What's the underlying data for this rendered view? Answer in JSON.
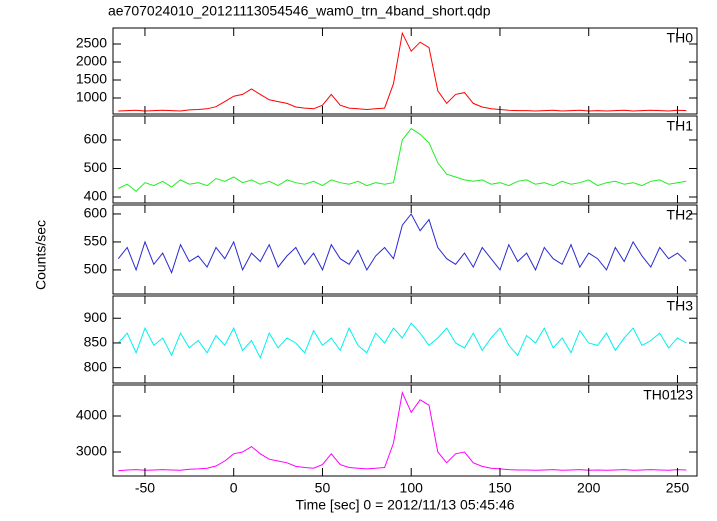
{
  "chart_data": [
    {
      "type": "line",
      "title": "ae707024010_20121113054546_wam0_trn_4band_short.qdp",
      "ylabel": "Counts/sec",
      "x": [
        -65,
        -60,
        -55,
        -50,
        -45,
        -40,
        -35,
        -30,
        -25,
        -20,
        -15,
        -10,
        -5,
        0,
        5,
        10,
        15,
        20,
        25,
        30,
        35,
        40,
        45,
        50,
        55,
        60,
        65,
        70,
        75,
        80,
        85,
        90,
        95,
        100,
        105,
        110,
        115,
        120,
        125,
        130,
        135,
        140,
        145,
        150,
        155,
        160,
        165,
        170,
        175,
        180,
        185,
        190,
        195,
        200,
        205,
        210,
        215,
        220,
        225,
        230,
        235,
        240,
        245,
        250,
        255
      ],
      "xlim": [
        -68,
        261
      ],
      "xticks": [
        -50,
        0,
        50,
        100,
        150,
        200,
        250
      ],
      "ylim": [
        556,
        2944
      ],
      "yticks": [
        1000,
        1500,
        2000,
        2500
      ],
      "series": [
        {
          "name": "TH0",
          "color": "#ff0000",
          "values": [
            640,
            650,
            660,
            640,
            650,
            660,
            650,
            640,
            670,
            680,
            700,
            760,
            900,
            1050,
            1100,
            1250,
            1100,
            950,
            900,
            850,
            750,
            720,
            700,
            800,
            1100,
            800,
            720,
            700,
            680,
            700,
            720,
            1400,
            2800,
            2300,
            2550,
            2400,
            1200,
            850,
            1100,
            1150,
            850,
            750,
            700,
            680,
            660,
            650,
            650,
            640,
            650,
            660,
            640,
            650,
            660,
            640,
            650,
            640,
            650,
            660,
            640,
            650,
            660,
            650,
            640,
            660,
            650
          ]
        }
      ]
    },
    {
      "type": "line",
      "x": [
        -65,
        -60,
        -55,
        -50,
        -45,
        -40,
        -35,
        -30,
        -25,
        -20,
        -15,
        -10,
        -5,
        0,
        5,
        10,
        15,
        20,
        25,
        30,
        35,
        40,
        45,
        50,
        55,
        60,
        65,
        70,
        75,
        80,
        85,
        90,
        95,
        100,
        105,
        110,
        115,
        120,
        125,
        130,
        135,
        140,
        145,
        150,
        155,
        160,
        165,
        170,
        175,
        180,
        185,
        190,
        195,
        200,
        205,
        210,
        215,
        220,
        225,
        230,
        235,
        240,
        245,
        250,
        255
      ],
      "xlim": [
        -68,
        261
      ],
      "xticks": [
        -50,
        0,
        50,
        100,
        150,
        200,
        250
      ],
      "ylim": [
        379,
        684
      ],
      "yticks": [
        400,
        500,
        600
      ],
      "series": [
        {
          "name": "TH1",
          "color": "#22ee22",
          "values": [
            430,
            445,
            420,
            450,
            440,
            455,
            435,
            460,
            445,
            450,
            440,
            465,
            455,
            470,
            450,
            460,
            445,
            455,
            440,
            460,
            450,
            445,
            455,
            440,
            460,
            450,
            445,
            455,
            440,
            450,
            445,
            450,
            600,
            640,
            620,
            590,
            520,
            480,
            470,
            460,
            455,
            460,
            445,
            450,
            440,
            455,
            460,
            445,
            450,
            440,
            455,
            445,
            450,
            460,
            440,
            450,
            455,
            445,
            450,
            440,
            455,
            460,
            445,
            450,
            455
          ]
        }
      ]
    },
    {
      "type": "line",
      "x": [
        -65,
        -60,
        -55,
        -50,
        -45,
        -40,
        -35,
        -30,
        -25,
        -20,
        -15,
        -10,
        -5,
        0,
        5,
        10,
        15,
        20,
        25,
        30,
        35,
        40,
        45,
        50,
        55,
        60,
        65,
        70,
        75,
        80,
        85,
        90,
        95,
        100,
        105,
        110,
        115,
        120,
        125,
        130,
        135,
        140,
        145,
        150,
        155,
        160,
        165,
        170,
        175,
        180,
        185,
        190,
        195,
        200,
        205,
        210,
        215,
        220,
        225,
        230,
        235,
        240,
        245,
        250,
        255
      ],
      "xlim": [
        -68,
        261
      ],
      "xticks": [
        -50,
        0,
        50,
        100,
        150,
        200,
        250
      ],
      "ylim": [
        457,
        616
      ],
      "yticks": [
        500,
        550,
        600
      ],
      "series": [
        {
          "name": "TH2",
          "color": "#2a2ad0",
          "values": [
            520,
            540,
            500,
            550,
            510,
            530,
            495,
            545,
            515,
            525,
            505,
            540,
            520,
            550,
            500,
            530,
            515,
            545,
            505,
            525,
            540,
            510,
            530,
            500,
            545,
            520,
            510,
            535,
            500,
            525,
            540,
            520,
            580,
            600,
            570,
            590,
            540,
            520,
            510,
            530,
            505,
            540,
            520,
            500,
            545,
            515,
            530,
            500,
            540,
            520,
            510,
            545,
            505,
            530,
            520,
            500,
            540,
            515,
            550,
            525,
            505,
            540,
            520,
            530,
            515
          ]
        }
      ]
    },
    {
      "type": "line",
      "x": [
        -65,
        -60,
        -55,
        -50,
        -45,
        -40,
        -35,
        -30,
        -25,
        -20,
        -15,
        -10,
        -5,
        0,
        5,
        10,
        15,
        20,
        25,
        30,
        35,
        40,
        45,
        50,
        55,
        60,
        65,
        70,
        75,
        80,
        85,
        90,
        95,
        100,
        105,
        110,
        115,
        120,
        125,
        130,
        135,
        140,
        145,
        150,
        155,
        160,
        165,
        170,
        175,
        180,
        185,
        190,
        195,
        200,
        205,
        210,
        215,
        220,
        225,
        230,
        235,
        240,
        245,
        250,
        255
      ],
      "xlim": [
        -68,
        261
      ],
      "xticks": [
        -50,
        0,
        50,
        100,
        150,
        200,
        250
      ],
      "ylim": [
        769,
        945
      ],
      "yticks": [
        800,
        850,
        900
      ],
      "series": [
        {
          "name": "TH3",
          "color": "#00f0f0",
          "values": [
            850,
            870,
            830,
            880,
            845,
            860,
            825,
            870,
            840,
            855,
            830,
            865,
            845,
            880,
            835,
            855,
            820,
            870,
            840,
            860,
            850,
            830,
            875,
            845,
            860,
            835,
            880,
            845,
            830,
            870,
            850,
            880,
            860,
            890,
            870,
            845,
            860,
            880,
            850,
            840,
            870,
            835,
            860,
            880,
            845,
            825,
            865,
            850,
            880,
            840,
            860,
            830,
            875,
            850,
            845,
            870,
            835,
            860,
            880,
            845,
            855,
            870,
            840,
            860,
            850
          ]
        }
      ]
    },
    {
      "type": "line",
      "xlabel": "Time [sec] 0 = 2012/11/13 05:45:46",
      "x": [
        -65,
        -60,
        -55,
        -50,
        -45,
        -40,
        -35,
        -30,
        -25,
        -20,
        -15,
        -10,
        -5,
        0,
        5,
        10,
        15,
        20,
        25,
        30,
        35,
        40,
        45,
        50,
        55,
        60,
        65,
        70,
        75,
        80,
        85,
        90,
        95,
        100,
        105,
        110,
        115,
        120,
        125,
        130,
        135,
        140,
        145,
        150,
        155,
        160,
        165,
        170,
        175,
        180,
        185,
        190,
        195,
        200,
        205,
        210,
        215,
        220,
        225,
        230,
        235,
        240,
        245,
        250,
        255
      ],
      "xlim": [
        -68,
        261
      ],
      "xticks": [
        -50,
        0,
        50,
        100,
        150,
        200,
        250
      ],
      "ylim": [
        2333,
        4861
      ],
      "yticks": [
        3000,
        4000
      ],
      "series": [
        {
          "name": "TH0123",
          "color": "#ff00ff",
          "values": [
            2480,
            2500,
            2510,
            2490,
            2500,
            2510,
            2500,
            2490,
            2520,
            2530,
            2550,
            2610,
            2750,
            2950,
            3000,
            3150,
            2950,
            2800,
            2750,
            2700,
            2600,
            2570,
            2550,
            2650,
            2950,
            2650,
            2570,
            2550,
            2530,
            2550,
            2570,
            3250,
            4650,
            4100,
            4450,
            4300,
            3000,
            2700,
            2950,
            3000,
            2700,
            2600,
            2550,
            2530,
            2510,
            2500,
            2500,
            2490,
            2500,
            2510,
            2490,
            2500,
            2510,
            2490,
            2500,
            2490,
            2500,
            2510,
            2490,
            2500,
            2510,
            2500,
            2490,
            2510,
            2500
          ]
        }
      ]
    }
  ]
}
